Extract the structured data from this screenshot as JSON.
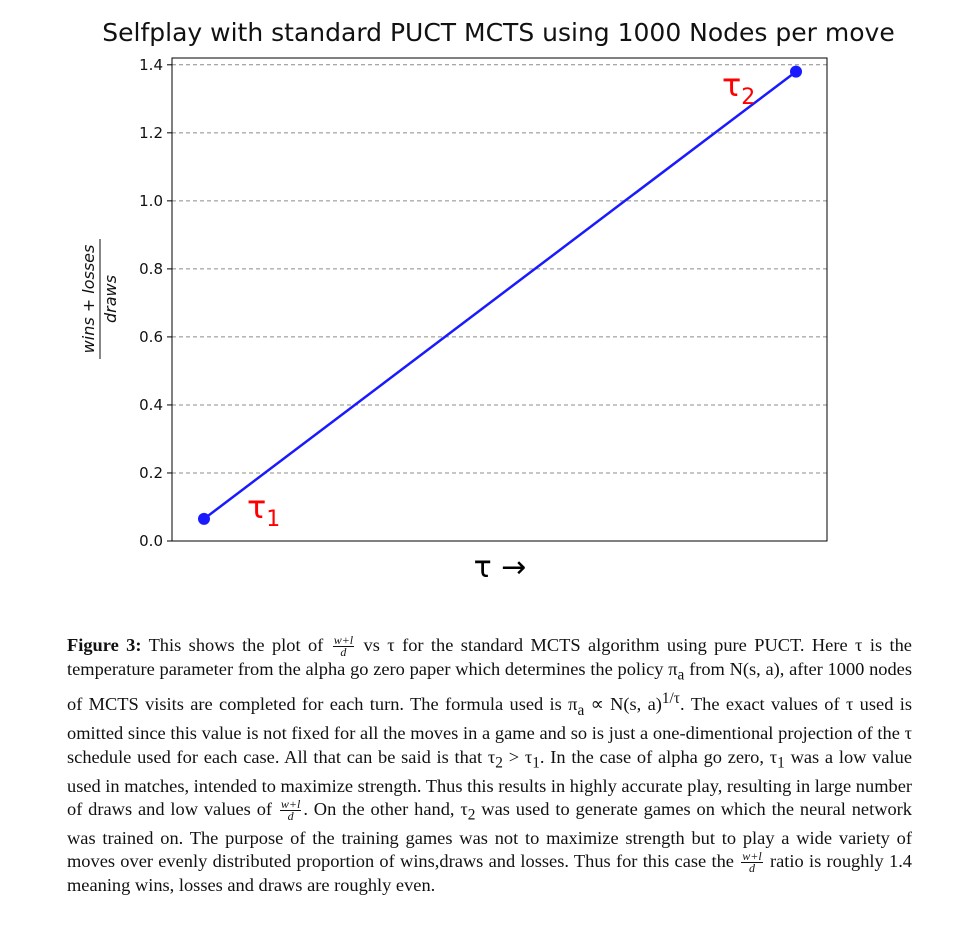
{
  "chart_data": {
    "type": "line",
    "title": "Selfplay with standard PUCT MCTS using 1000 Nodes per move",
    "xlabel": "τ →",
    "ylabel": "wins + losses / draws",
    "ylabel_num": "wins + losses",
    "ylabel_den": "draws",
    "ylim": [
      0.0,
      1.42
    ],
    "yticks": [
      0.0,
      0.2,
      0.4,
      0.6,
      0.8,
      1.0,
      1.2,
      1.4
    ],
    "ytick_labels": [
      "0.0",
      "0.2",
      "0.4",
      "0.6",
      "0.8",
      "1.0",
      "1.2",
      "1.4"
    ],
    "grid": "horizontal dashed",
    "series": [
      {
        "color": "#1a1aff",
        "points": [
          {
            "x": "τ1",
            "y": 0.065
          },
          {
            "x": "τ2",
            "y": 1.38
          }
        ]
      }
    ],
    "annotations": [
      {
        "base": "τ",
        "sub": "1",
        "color": "#ff0000"
      },
      {
        "base": "τ",
        "sub": "2",
        "color": "#ff0000"
      }
    ]
  },
  "caption": {
    "label": "Figure 3:",
    "p1": "This shows the plot of",
    "frac_num": "w+l",
    "frac_den": "d",
    "p2": "vs τ for the standard MCTS algorithm using pure PUCT. Here τ is the temperature parameter from the alpha go zero paper which determines the policy π",
    "p2_sub": "a",
    "p3": "from N(s, a), after 1000 nodes of MCTS visits are completed for each turn. The formula used is π",
    "p3_sub": "a",
    "p4": "∝ N(s, a)",
    "p4_sup": "1/τ",
    "p5": ". The exact values of τ used is omitted since this value is not fixed for all the moves in a game and so is just a one-dimentional projection of the τ schedule used for each case. All that can be said is that τ",
    "p5_sub": "2",
    "p6": "> τ",
    "p6_sub": "1",
    "p7": ". In the case of alpha go zero, τ",
    "p7_sub": "1",
    "p8": "was a low value used in matches, intended to maximize strength. Thus this results in highly accurate play, resulting in large number of draws and low values of",
    "p9": ". On the other hand, τ",
    "p9_sub": "2",
    "p10": "was used to generate games on which the neural network was trained on. The purpose of the training games was not to maximize strength but to play a wide variety of moves over evenly distributed proportion of wins,draws and losses. Thus for this case the",
    "p11": "ratio is roughly 1.4 meaning wins, losses and draws are roughly even."
  }
}
